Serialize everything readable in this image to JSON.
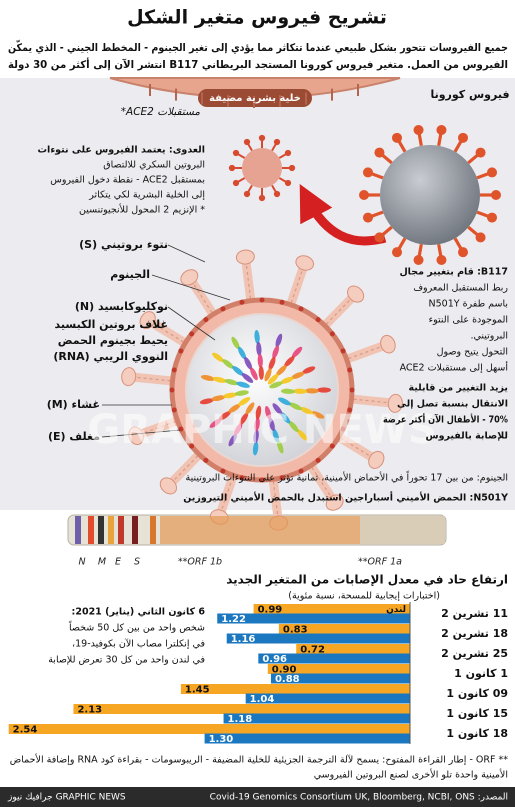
{
  "header": {
    "title": "تشريح فيروس متغير الشكل",
    "subtitle": [
      "جميع الفيروسات تتحور بشكل طبيعي عندما تتكاثر مما يؤدي إلى تغير الجينوم - المخطط الجيني - الذي يمكّن",
      "الفيروس من العمل. متغير فيروس كورونا المستجد البريطاني B117 انتشر الآن إلى أكثر من 30 دولة"
    ]
  },
  "diagram": {
    "host_cell": "خلية بشرية مضيفة",
    "coronavirus": "فيروس كورونا",
    "receptors": "مستقبلات ACE2*",
    "infection": [
      "العدوى: يعتمد الفيروس على نتوءات",
      "البروتين السكري للالتصاق",
      "بمستقبل ACE2 - نقطة دخول الفيروس",
      "إلى الخلية البشرية لكي يتكاثر",
      "* الإنزيم 2 المحول للأنجيوتنسين"
    ],
    "spike": "نتوء بروتيني (S)",
    "genome": "الجينوم",
    "nucleocapsid": "نوكليوكابسيد (N)",
    "nucleocapsid_desc": [
      "غلاف بروتين الكبسيد",
      "يحيط بجينوم الحمض",
      "النووي الريبي (RNA)"
    ],
    "membrane": "غشاء (M)",
    "envelope": "مغلف (E)",
    "b117": [
      "B117: قام بتغيير مجال",
      "ربط المستقبل المعروف",
      "باسم طفرة N501Y",
      "الموجودة على النتوء",
      "البروتيني.",
      "التحول يتيح وصول",
      "أسهل إلى مستقبلات ACE2"
    ],
    "transmission": [
      "يزيد التغيير من قابلية",
      "الانتقال بنسبة تصل إلى",
      "70% - الأطفال الآن أكثر عرضة",
      "للإصابة بالفيروس"
    ],
    "watermark": "GRAPHIC NEWS"
  },
  "genome": {
    "notes": [
      "الجينوم: من بين 17 تحوراً في الأحماض الأمينية، ثمانية تؤثر على النتوءات البروتينية",
      "N501Y: الحمض الأميني أسباراجين استبدل بالحمض الأميني التيروزين"
    ],
    "labels": [
      "N",
      "M",
      "E",
      "S",
      "**ORF 1b",
      "**ORF 1a"
    ]
  },
  "chart_data": {
    "type": "bar",
    "orientation": "horizontal",
    "title": "ارتفاع حاد في معدل الإصابات من المتغير الجديد",
    "subtitle": "(اختبارات إيجابية للمسحة، نسبة مئوية)",
    "categories": [
      "11 تشرين 2",
      "18 تشرين 2",
      "25 تشرين 2",
      "1 كانون 1",
      "09 كانون 1",
      "15 كانون 1",
      "18 كانون 1"
    ],
    "series": [
      {
        "name": "لندن",
        "color": "#f6a623",
        "values": [
          0.99,
          0.83,
          0.72,
          0.9,
          1.45,
          2.13,
          2.54
        ],
        "value_labels": [
          "0.99",
          "0.83",
          "0.72",
          "0.90",
          "1.45",
          "2.13",
          "2.54"
        ]
      },
      {
        "color": "#1b77c0",
        "values": [
          1.22,
          1.16,
          0.96,
          0.88,
          1.04,
          1.18,
          1.3
        ],
        "value_labels": [
          "1.22",
          "1.16",
          "0.96",
          "0.88",
          "1.04",
          "1.18",
          "1.30"
        ]
      }
    ]
  },
  "chart_note": [
    "6 كانون الثاني (يناير) 2021:",
    "شخص واحد من بين كل 50 شخصاً",
    "في إنكلترا مصاب الآن بكوفيد-19،",
    "في لندن واحد من كل 30 تعرض للإصابة"
  ],
  "footnote": [
    "** ORF - إطار القراءة المفتوح: يسمح لآلة الترجمة الجزيئية للخلية المضيفة - الريبوسومات - بقراءة كود RNA وإضافة الأحماض",
    "الأمينية واحدة تلو الأخرى لصنع البروتين الفيروسي"
  ],
  "footer": {
    "source": "المصدر: Covid-19 Genomics Consortium UK, Bloomberg, NCBI, ONS",
    "credit": "GRAPHIC NEWS جرافيك نيوز"
  }
}
